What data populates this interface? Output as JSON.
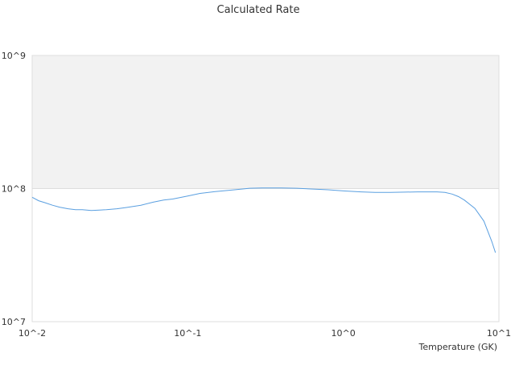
{
  "chart_data": {
    "type": "line",
    "title": "Calculated Rate",
    "xlabel": "Temperature (GK)",
    "ylabel": "",
    "xscale": "log",
    "yscale": "log",
    "xlim": [
      0.01,
      10
    ],
    "ylim": [
      10000000,
      1000000000
    ],
    "x_tick_labels": [
      "10^-2",
      "10^-1",
      "10^0",
      "10^1"
    ],
    "y_tick_labels": [
      "10^7",
      "10^8",
      "10^9"
    ],
    "grid": true,
    "legend": "none",
    "colors": {
      "line": "#5a9fe0",
      "upper_band": "#f2f2f2",
      "plot_border": "#dddddd",
      "grid": "#dddddd"
    },
    "series": [
      {
        "x": [
          0.01,
          0.011,
          0.012,
          0.0135,
          0.015,
          0.017,
          0.019,
          0.021,
          0.024,
          0.027,
          0.03,
          0.035,
          0.04,
          0.05,
          0.06,
          0.07,
          0.08,
          0.1,
          0.12,
          0.15,
          0.2,
          0.25,
          0.3,
          0.4,
          0.5,
          0.6,
          0.8,
          1.0,
          1.3,
          1.6,
          2.0,
          2.5,
          3.0,
          3.5,
          4.0,
          4.5,
          5.0,
          5.5,
          6.0,
          7.0,
          8.0,
          9.0,
          9.5
        ],
        "values": [
          86000000,
          81000000,
          78500000,
          75000000,
          72500000,
          70500000,
          69500000,
          69500000,
          68500000,
          69000000,
          69500000,
          70500000,
          72000000,
          75000000,
          79000000,
          82000000,
          83500000,
          88000000,
          92000000,
          95000000,
          98000000,
          100500000,
          101000000,
          101000000,
          100500000,
          99500000,
          98000000,
          96000000,
          94500000,
          93500000,
          93500000,
          94000000,
          94500000,
          94500000,
          94500000,
          93500000,
          91000000,
          87000000,
          82000000,
          71000000,
          57000000,
          40000000,
          33000000
        ]
      }
    ]
  }
}
